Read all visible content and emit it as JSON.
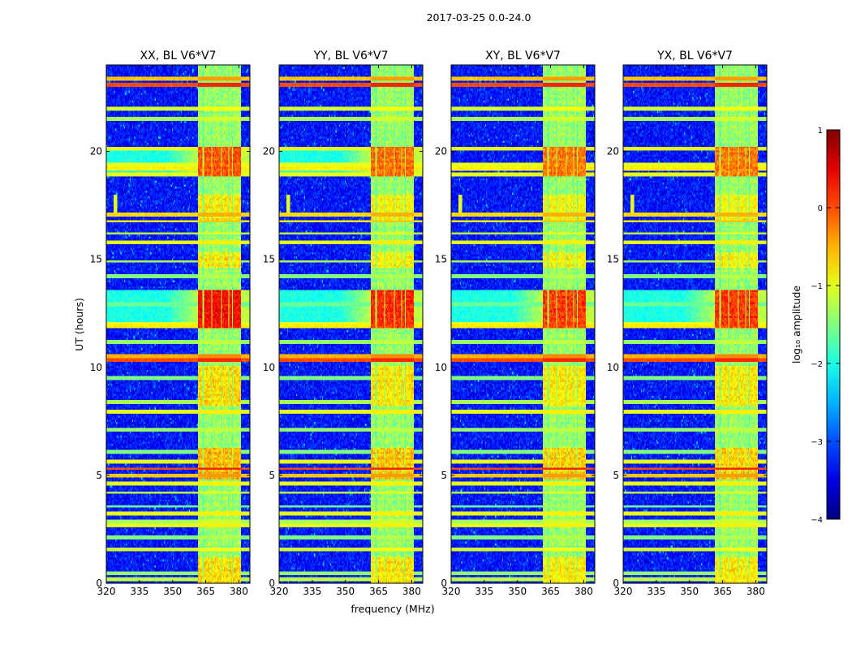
{
  "figure": {
    "suptitle": "2017-03-25 0.0-24.0",
    "xlabel": "frequency (MHz)",
    "ylabel": "UT (hours)"
  },
  "colorbar": {
    "label": "log₁₀ amplitude",
    "ticks": [
      "1",
      "0",
      "−1",
      "−2",
      "−3",
      "−4"
    ],
    "colormap": "jet",
    "colors": [
      "#00007f",
      "#0000ff",
      "#00ffff",
      "#80ff80",
      "#ffff00",
      "#ff8000",
      "#ff0000",
      "#7f0000"
    ]
  },
  "chart_data": {
    "type": "heatmap",
    "title": "2017-03-25 0.0-24.0",
    "xlabel": "frequency (MHz)",
    "ylabel": "UT (hours)",
    "xlim": [
      320,
      385
    ],
    "ylim": [
      0,
      24
    ],
    "xticks": [
      320,
      335,
      350,
      365,
      380
    ],
    "yticks": [
      0,
      5,
      10,
      15,
      20
    ],
    "xtick_labels": [
      "320",
      "335",
      "350",
      "365",
      "380"
    ],
    "ytick_labels": [
      "0",
      "5",
      "10",
      "15",
      "20"
    ],
    "colorbar_range": [
      -4,
      1
    ],
    "value_label": "log10 amplitude",
    "panels": [
      {
        "id": "xx",
        "title": "XX, BL V6*V7",
        "peak_scale": 1.0
      },
      {
        "id": "yy",
        "title": "YY, BL V6*V7",
        "peak_scale": 0.9
      },
      {
        "id": "xy",
        "title": "XY, BL V6*V7",
        "peak_scale": 0.85
      },
      {
        "id": "yx",
        "title": "YX, BL V6*V7",
        "peak_scale": 0.85
      }
    ],
    "rfi_band_mhz": [
      361.5,
      381
    ],
    "rfi_stripes_mhz": [
      [
        361.5,
        363.6
      ],
      [
        364.1,
        367.6
      ],
      [
        368.1,
        371.9
      ],
      [
        372.4,
        375.1
      ],
      [
        375.7,
        376.9
      ],
      [
        377.4,
        381
      ]
    ],
    "active_periods": [
      {
        "ut": [
          11.8,
          13.6
        ],
        "level": 0.9
      },
      {
        "ut": [
          18.8,
          20.2
        ],
        "level": 0.7
      },
      {
        "ut": [
          4.8,
          6.3
        ],
        "level": 0.45
      },
      {
        "ut": [
          0.0,
          1.2
        ],
        "level": 0.35
      },
      {
        "ut": [
          8.2,
          10.1
        ],
        "level": 0.35
      },
      {
        "ut": [
          14.6,
          15.3
        ],
        "level": 0.3
      },
      {
        "ut": [
          16.8,
          18.0
        ],
        "level": 0.3
      }
    ],
    "broadband_rows": [
      {
        "ut": 0.2,
        "value": -1.2
      },
      {
        "ut": 0.45,
        "value": -1.4
      },
      {
        "ut": 1.55,
        "value": -1.1
      },
      {
        "ut": 2.1,
        "value": -1.5
      },
      {
        "ut": 2.65,
        "value": -1.0
      },
      {
        "ut": 2.85,
        "value": -1.3
      },
      {
        "ut": 3.25,
        "value": -1.0
      },
      {
        "ut": 3.55,
        "value": -1.6
      },
      {
        "ut": 4.2,
        "value": -1.2
      },
      {
        "ut": 4.6,
        "value": -1.0
      },
      {
        "ut": 4.95,
        "value": -0.6
      },
      {
        "ut": 5.3,
        "value": 0.0
      },
      {
        "ut": 5.6,
        "value": -1.0
      },
      {
        "ut": 6.1,
        "value": -1.5
      },
      {
        "ut": 7.1,
        "value": -1.4
      },
      {
        "ut": 7.95,
        "value": -1.0
      },
      {
        "ut": 8.4,
        "value": -1.3
      },
      {
        "ut": 9.5,
        "value": -1.5
      },
      {
        "ut": 10.35,
        "value": 0.0
      },
      {
        "ut": 10.55,
        "value": -0.5
      },
      {
        "ut": 11.2,
        "value": -1.4
      },
      {
        "ut": 11.9,
        "value": -0.8
      },
      {
        "ut": 12.0,
        "value": -1.0
      },
      {
        "ut": 12.9,
        "value": -1.6
      },
      {
        "ut": 14.2,
        "value": -1.5
      },
      {
        "ut": 14.9,
        "value": -1.3
      },
      {
        "ut": 15.8,
        "value": -1.0
      },
      {
        "ut": 16.2,
        "value": -1.2
      },
      {
        "ut": 16.75,
        "value": -0.8
      },
      {
        "ut": 17.05,
        "value": -0.7
      },
      {
        "ut": 18.9,
        "value": -1.0
      },
      {
        "ut": 19.2,
        "value": -0.8
      },
      {
        "ut": 19.4,
        "value": -1.0
      },
      {
        "ut": 20.15,
        "value": -1.0
      },
      {
        "ut": 21.5,
        "value": -1.3
      },
      {
        "ut": 22.0,
        "value": -1.1
      },
      {
        "ut": 23.1,
        "value": 0.0
      },
      {
        "ut": 23.35,
        "value": -0.6
      }
    ],
    "spot": {
      "freq_mhz": 324,
      "ut": [
        17.2,
        18.0
      ],
      "value": -1.0
    }
  }
}
